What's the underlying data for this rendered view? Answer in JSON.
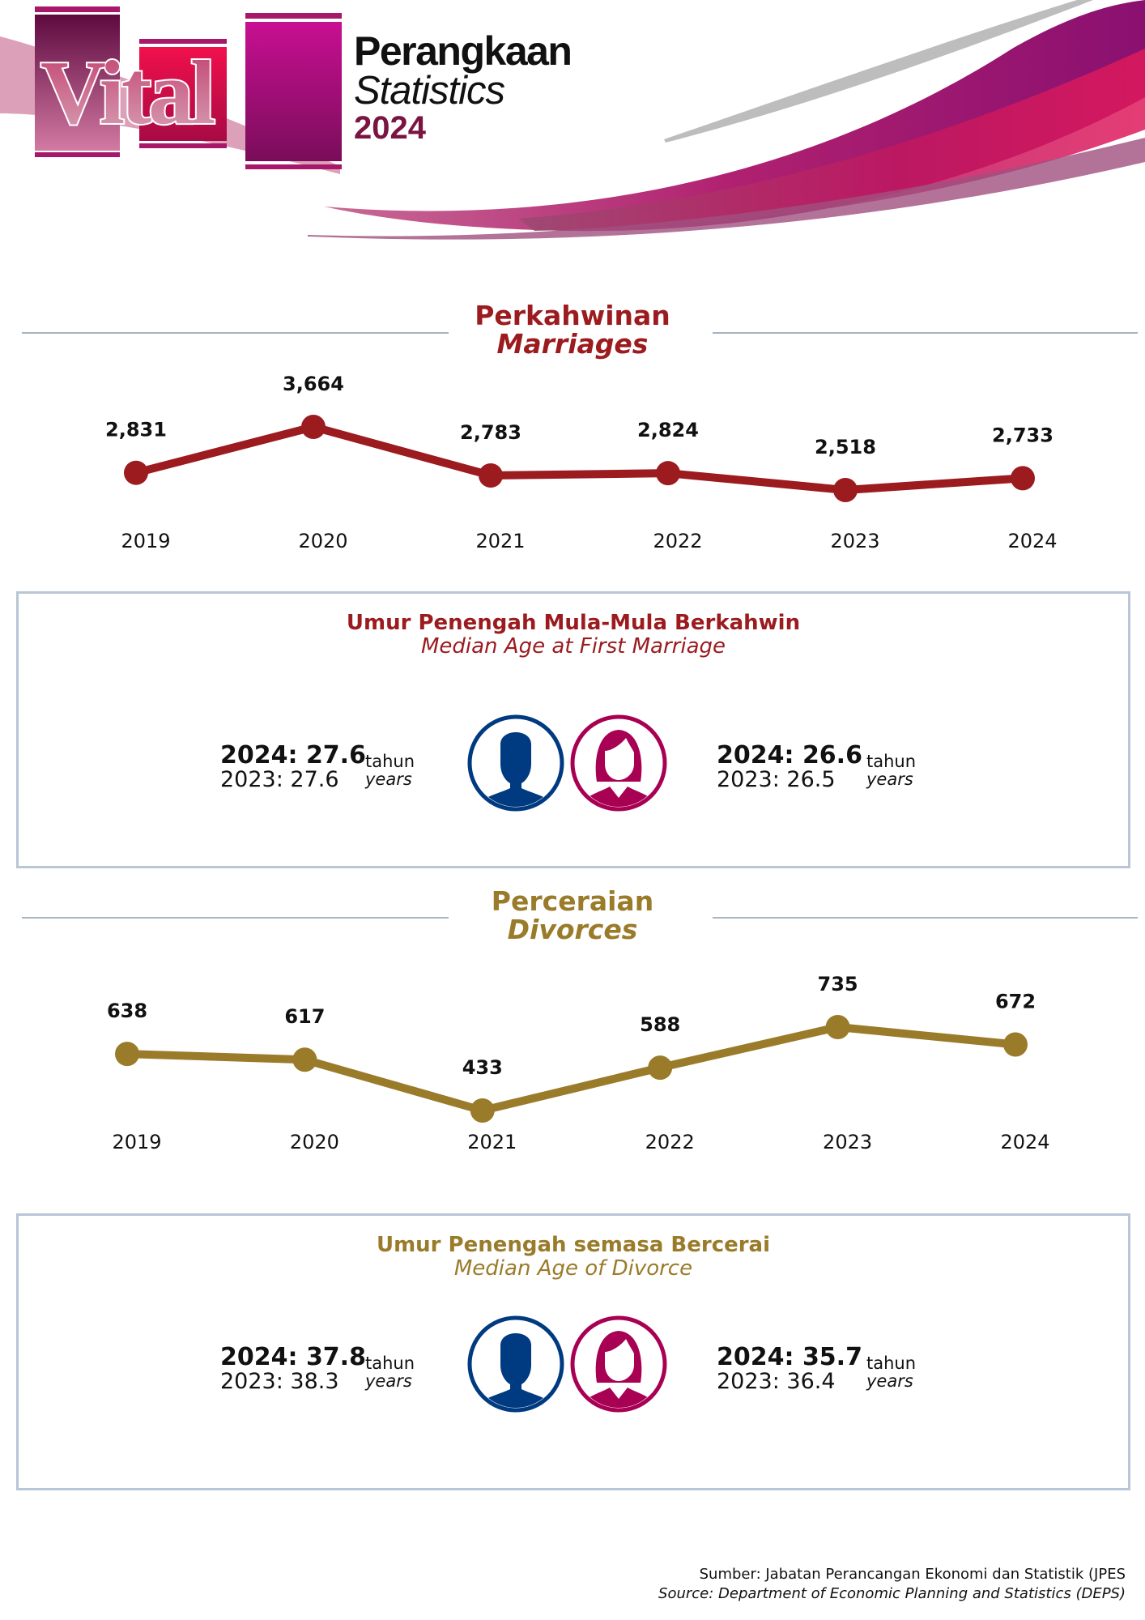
{
  "header": {
    "logo_word": "Vital",
    "title_ms": "Perangkaan",
    "title_en": "Statistics",
    "year": "2024",
    "colors": {
      "primary": "#c0108a",
      "dark": "#7a1440",
      "accent": "#e01050"
    }
  },
  "marriages": {
    "title_ms": "Perkahwinan",
    "title_en": "Marriages",
    "color": "#9b1b1f",
    "median_age": {
      "title_ms": "Umur Penengah Mula-Mula Berkahwin",
      "title_en": "Median Age at First Marriage",
      "male": {
        "current": "2024: 27.6",
        "previous": "2023: 27.6"
      },
      "female": {
        "current": "2024: 26.6",
        "previous": "2023: 26.5"
      },
      "unit_ms": "tahun",
      "unit_en": "years"
    }
  },
  "divorces": {
    "title_ms": "Perceraian",
    "title_en": "Divorces",
    "color": "#9a7b2a",
    "median_age": {
      "title_ms": "Umur Penengah semasa Bercerai",
      "title_en": "Median Age of Divorce",
      "male": {
        "current": "2024: 37.8",
        "previous": "2023: 38.3"
      },
      "female": {
        "current": "2024: 35.7",
        "previous": "2023: 36.4"
      },
      "unit_ms": "tahun",
      "unit_en": "years"
    }
  },
  "icons": {
    "male": "male-avatar-icon",
    "female": "female-avatar-icon",
    "male_color": "#003a80",
    "female_color": "#a80052"
  },
  "chart_data": [
    {
      "type": "line",
      "title": "Perkahwinan / Marriages",
      "categories": [
        "2019",
        "2020",
        "2021",
        "2022",
        "2023",
        "2024"
      ],
      "values": [
        2831,
        3664,
        2783,
        2824,
        2518,
        2733
      ],
      "labels": [
        "2,831",
        "3,664",
        "2,783",
        "2,824",
        "2,518",
        "2,733"
      ],
      "xlabel": "",
      "ylabel": "",
      "color": "#9b1b1f",
      "grid": false
    },
    {
      "type": "line",
      "title": "Perceraian / Divorces",
      "categories": [
        "2019",
        "2020",
        "2021",
        "2022",
        "2023",
        "2024"
      ],
      "values": [
        638,
        617,
        433,
        588,
        735,
        672
      ],
      "labels": [
        "638",
        "617",
        "433",
        "588",
        "735",
        "672"
      ],
      "xlabel": "",
      "ylabel": "",
      "color": "#9a7b2a",
      "grid": false
    }
  ],
  "footer": {
    "source_ms": "Sumber: Jabatan Perancangan Ekonomi dan Statistik (JPES",
    "source_en": "Source: Department of Economic Planning and Statistics (DEPS)"
  }
}
